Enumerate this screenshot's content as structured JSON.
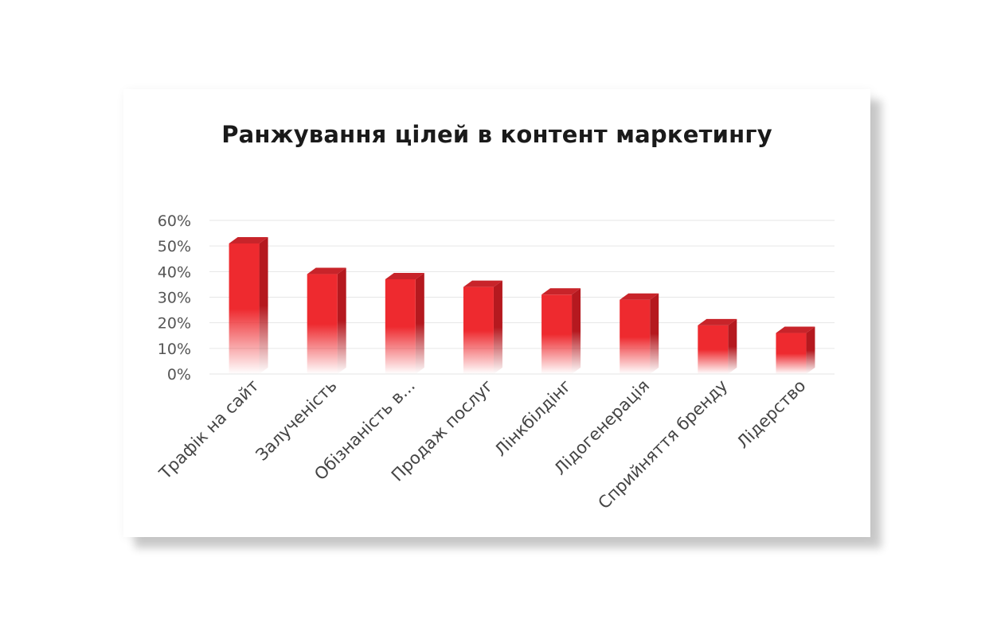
{
  "chart_data": {
    "type": "bar",
    "title": "Ранжування цілей в контент маркетингу",
    "categories": [
      "Трафік на сайт",
      "Залученість",
      "Обізнаність в...",
      "Продаж послуг",
      "Лінкбілдінг",
      "Лідогенерація",
      "Сприйняття бренду",
      "Лідерство"
    ],
    "values": [
      51,
      39,
      37,
      34,
      31,
      29,
      19,
      16
    ],
    "unit": "%",
    "ylim": [
      0,
      60
    ],
    "yticks": [
      "0%",
      "10%",
      "20%",
      "30%",
      "40%",
      "50%",
      "60%"
    ],
    "xlabel": "",
    "ylabel": "",
    "grid": true,
    "style": "3d-column",
    "colors": {
      "front": "#ee2a2f",
      "side": "#b5191f",
      "top": "#c8242a"
    }
  }
}
